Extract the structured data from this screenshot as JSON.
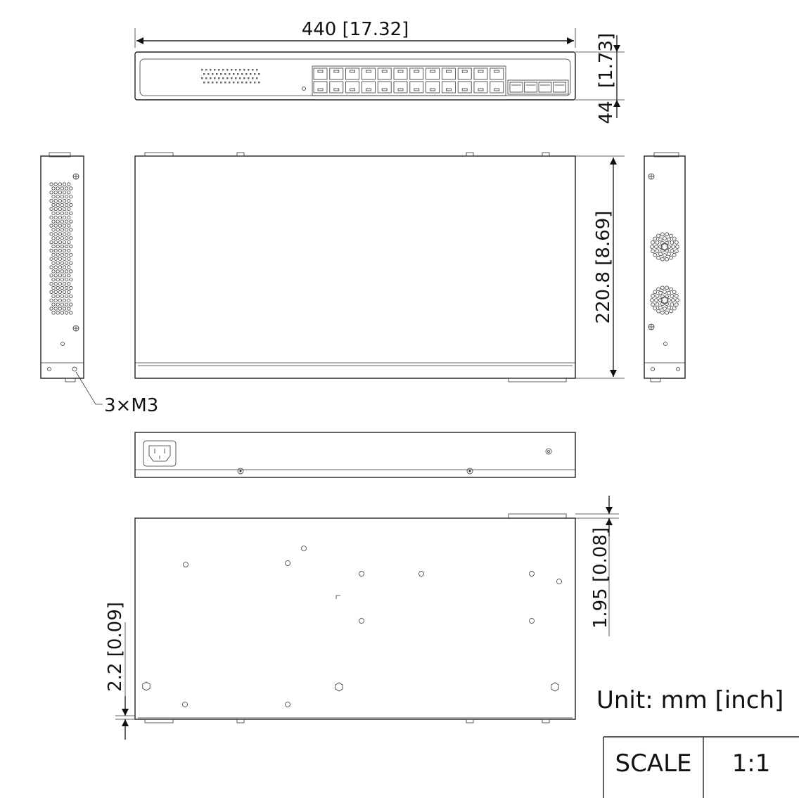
{
  "drawing": {
    "front_width_label": "440 [17.32]",
    "front_height_label_inch": "[1.73]",
    "front_height_label_mm": "44",
    "depth_label": "220.8 [8.69]",
    "screw_label": "3×M3",
    "foot_height_label": "1.95 [0.08]",
    "plate_thickness_label": "2.2 [0.09]",
    "unit_label": "Unit: mm [inch]"
  },
  "title_block": {
    "scale_header": "SCALE",
    "scale_value": "1:1"
  }
}
